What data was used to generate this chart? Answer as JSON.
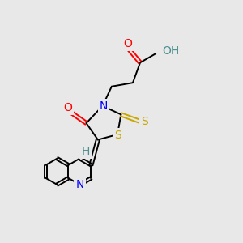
{
  "background_color": "#e8e8e8",
  "atom_colors": {
    "C": "#000000",
    "N": "#0000ff",
    "O": "#ff0000",
    "S": "#c8a800",
    "H": "#4a9090"
  },
  "fig_size": [
    3.0,
    3.0
  ],
  "dpi": 100,
  "lw": 1.4,
  "fs": 10
}
